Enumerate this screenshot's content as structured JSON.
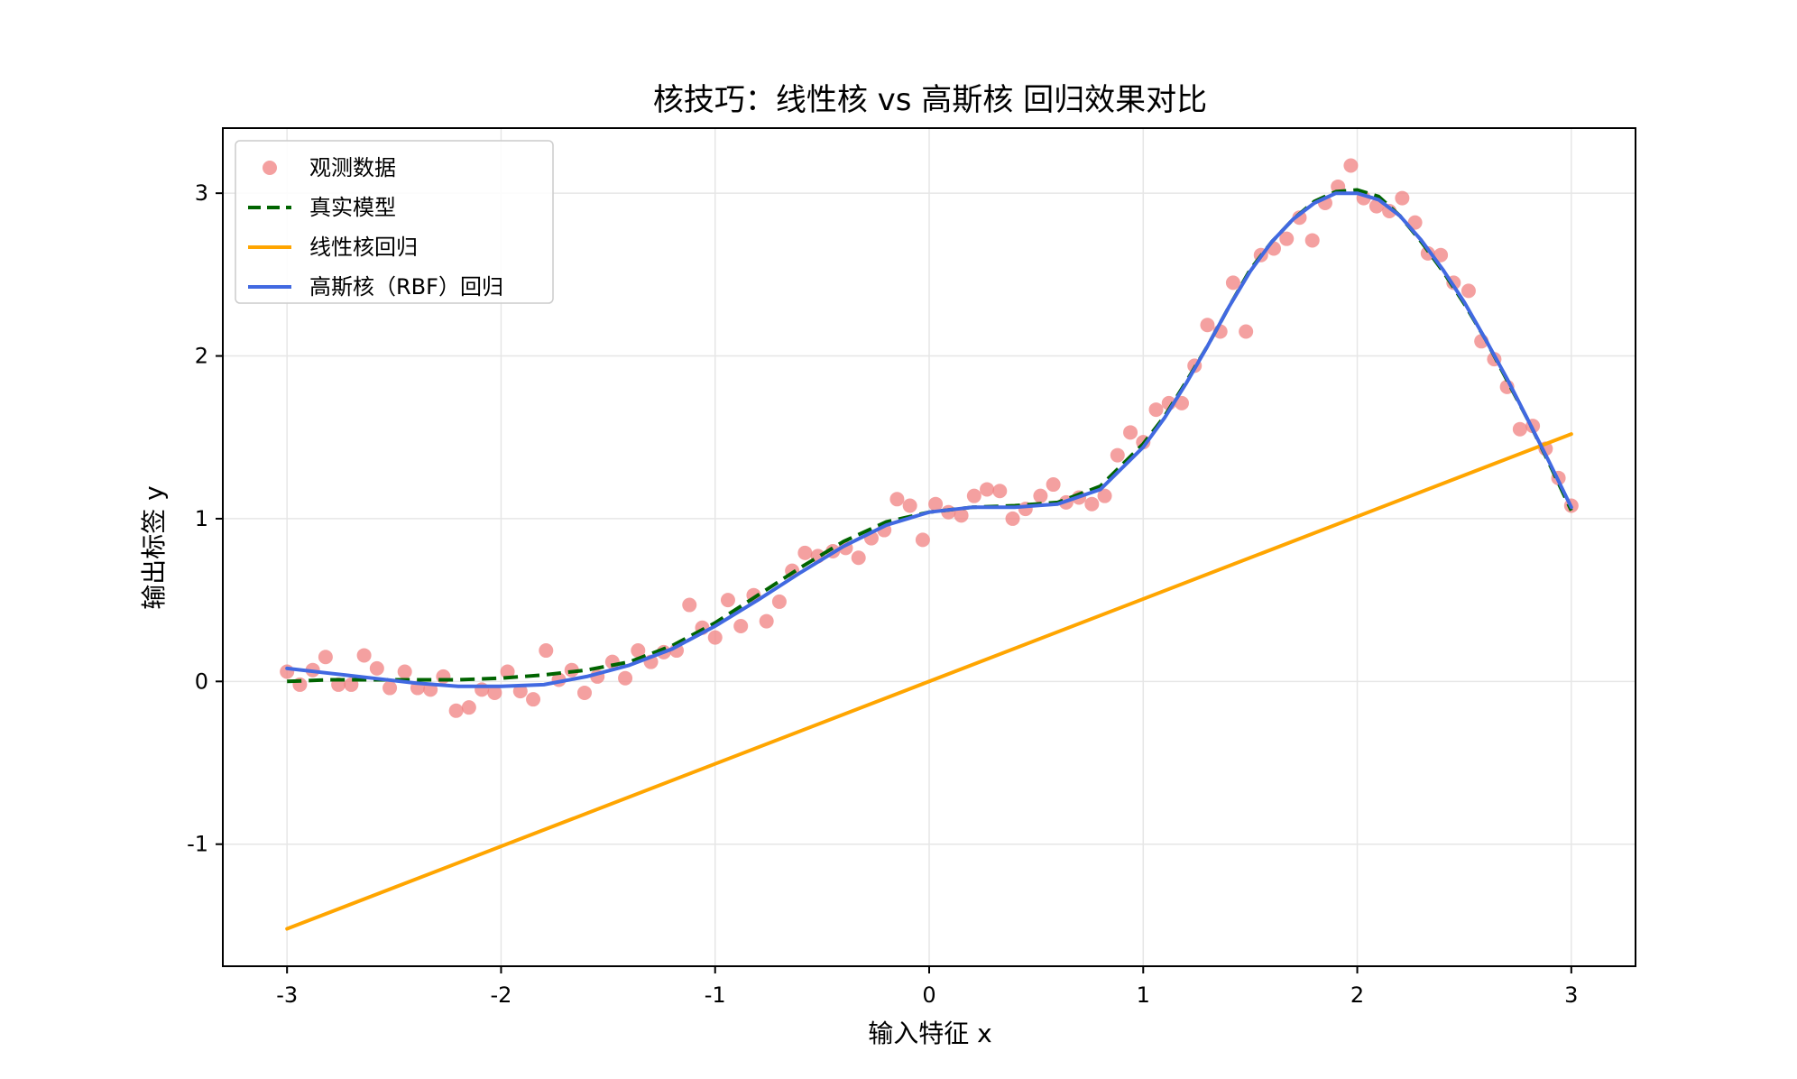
{
  "chart_data": {
    "type": "scatter+line",
    "title": "核技巧：线性核 vs 高斯核 回归效果对比",
    "xlabel": "输入特征 x",
    "ylabel": "输出标签 y",
    "xlim": [
      -3.3,
      3.3
    ],
    "ylim": [
      -1.75,
      3.4
    ],
    "xticks": [
      -3,
      -2,
      -1,
      0,
      1,
      2,
      3
    ],
    "xtick_labels": [
      "-3",
      "-2",
      "-1",
      "0",
      "1",
      "2",
      "3"
    ],
    "yticks": [
      -1,
      0,
      1,
      2,
      3
    ],
    "ytick_labels": [
      "-1",
      "0",
      "1",
      "2",
      "3"
    ],
    "grid": true,
    "legend_position": "top-left",
    "colors": {
      "observed": "#f08080",
      "true_model": "#006400",
      "linear": "#ffa500",
      "rbf": "#4169e1"
    },
    "legend": [
      {
        "key": "observed",
        "label": "观测数据"
      },
      {
        "key": "true_model",
        "label": "真实模型"
      },
      {
        "key": "linear",
        "label": "线性核回归"
      },
      {
        "key": "rbf",
        "label": "高斯核（RBF）回归"
      }
    ],
    "scatter": {
      "name": "观测数据",
      "x": [
        -3.0,
        -2.94,
        -2.88,
        -2.82,
        -2.76,
        -2.7,
        -2.64,
        -2.58,
        -2.52,
        -2.45,
        -2.39,
        -2.33,
        -2.27,
        -2.21,
        -2.15,
        -2.09,
        -2.03,
        -1.97,
        -1.91,
        -1.85,
        -1.79,
        -1.73,
        -1.67,
        -1.61,
        -1.55,
        -1.48,
        -1.42,
        -1.36,
        -1.3,
        -1.24,
        -1.18,
        -1.12,
        -1.06,
        -1.0,
        -0.94,
        -0.88,
        -0.82,
        -0.76,
        -0.7,
        -0.64,
        -0.58,
        -0.52,
        -0.45,
        -0.39,
        -0.33,
        -0.27,
        -0.21,
        -0.15,
        -0.09,
        -0.03,
        0.03,
        0.09,
        0.15,
        0.21,
        0.27,
        0.33,
        0.39,
        0.45,
        0.52,
        0.58,
        0.64,
        0.7,
        0.76,
        0.82,
        0.88,
        0.94,
        1.0,
        1.06,
        1.12,
        1.18,
        1.24,
        1.3,
        1.36,
        1.42,
        1.48,
        1.55,
        1.61,
        1.67,
        1.73,
        1.79,
        1.85,
        1.91,
        1.97,
        2.03,
        2.09,
        2.15,
        2.21,
        2.27,
        2.33,
        2.39,
        2.45,
        2.52,
        2.58,
        2.64,
        2.7,
        2.76,
        2.82,
        2.88,
        2.94,
        3.0
      ],
      "y": [
        0.06,
        -0.02,
        0.07,
        0.15,
        -0.02,
        -0.02,
        0.16,
        0.08,
        -0.04,
        0.06,
        -0.04,
        -0.05,
        0.03,
        -0.18,
        -0.16,
        -0.05,
        -0.07,
        0.06,
        -0.06,
        -0.11,
        0.19,
        0.01,
        0.07,
        -0.07,
        0.03,
        0.12,
        0.02,
        0.19,
        0.12,
        0.18,
        0.19,
        0.47,
        0.33,
        0.27,
        0.5,
        0.34,
        0.53,
        0.37,
        0.49,
        0.68,
        0.79,
        0.77,
        0.8,
        0.82,
        0.76,
        0.88,
        0.93,
        1.12,
        1.08,
        0.87,
        1.09,
        1.04,
        1.02,
        1.14,
        1.18,
        1.17,
        1.0,
        1.06,
        1.14,
        1.21,
        1.1,
        1.13,
        1.09,
        1.14,
        1.39,
        1.53,
        1.47,
        1.67,
        1.71,
        1.71,
        1.94,
        2.19,
        2.15,
        2.45,
        2.15,
        2.62,
        2.66,
        2.72,
        2.85,
        2.71,
        2.94,
        3.04,
        3.17,
        2.97,
        2.92,
        2.89,
        2.97,
        2.82,
        2.63,
        2.62,
        2.45,
        2.4,
        2.09,
        1.98,
        1.81,
        1.55,
        1.57,
        1.43,
        1.25,
        1.08
      ]
    },
    "series": [
      {
        "name": "真实模型",
        "key": "true_model",
        "style": "dashed",
        "x": [
          -3.0,
          -2.8,
          -2.6,
          -2.4,
          -2.2,
          -2.0,
          -1.8,
          -1.6,
          -1.4,
          -1.2,
          -1.0,
          -0.8,
          -0.6,
          -0.4,
          -0.2,
          0.0,
          0.2,
          0.4,
          0.6,
          0.8,
          1.0,
          1.1,
          1.2,
          1.3,
          1.4,
          1.5,
          1.6,
          1.7,
          1.8,
          1.9,
          2.0,
          2.1,
          2.2,
          2.3,
          2.4,
          2.5,
          2.6,
          2.7,
          2.8,
          2.9,
          3.0
        ],
        "y": [
          0.0,
          0.01,
          0.01,
          0.01,
          0.01,
          0.02,
          0.04,
          0.07,
          0.12,
          0.22,
          0.36,
          0.53,
          0.7,
          0.86,
          0.98,
          1.04,
          1.07,
          1.08,
          1.1,
          1.2,
          1.46,
          1.63,
          1.84,
          2.06,
          2.3,
          2.53,
          2.7,
          2.84,
          2.95,
          3.01,
          3.02,
          2.98,
          2.86,
          2.7,
          2.52,
          2.32,
          2.1,
          1.85,
          1.6,
          1.33,
          1.05
        ]
      },
      {
        "name": "线性核回归",
        "key": "linear",
        "style": "solid",
        "x": [
          -3.0,
          3.0
        ],
        "y": [
          -1.52,
          1.52
        ]
      },
      {
        "name": "高斯核（RBF）回归",
        "key": "rbf",
        "style": "solid",
        "x": [
          -3.0,
          -2.8,
          -2.6,
          -2.4,
          -2.2,
          -2.0,
          -1.8,
          -1.6,
          -1.4,
          -1.2,
          -1.0,
          -0.8,
          -0.6,
          -0.4,
          -0.2,
          0.0,
          0.2,
          0.4,
          0.6,
          0.8,
          1.0,
          1.1,
          1.2,
          1.3,
          1.4,
          1.5,
          1.6,
          1.7,
          1.8,
          1.9,
          2.0,
          2.1,
          2.2,
          2.3,
          2.4,
          2.5,
          2.6,
          2.7,
          2.8,
          2.9,
          3.0
        ],
        "y": [
          0.08,
          0.05,
          0.02,
          -0.01,
          -0.03,
          -0.03,
          -0.02,
          0.03,
          0.1,
          0.2,
          0.34,
          0.5,
          0.67,
          0.83,
          0.96,
          1.04,
          1.07,
          1.07,
          1.09,
          1.18,
          1.44,
          1.62,
          1.83,
          2.06,
          2.3,
          2.52,
          2.7,
          2.84,
          2.94,
          3.0,
          3.0,
          2.96,
          2.86,
          2.71,
          2.53,
          2.33,
          2.1,
          1.86,
          1.6,
          1.34,
          1.07
        ]
      }
    ]
  }
}
